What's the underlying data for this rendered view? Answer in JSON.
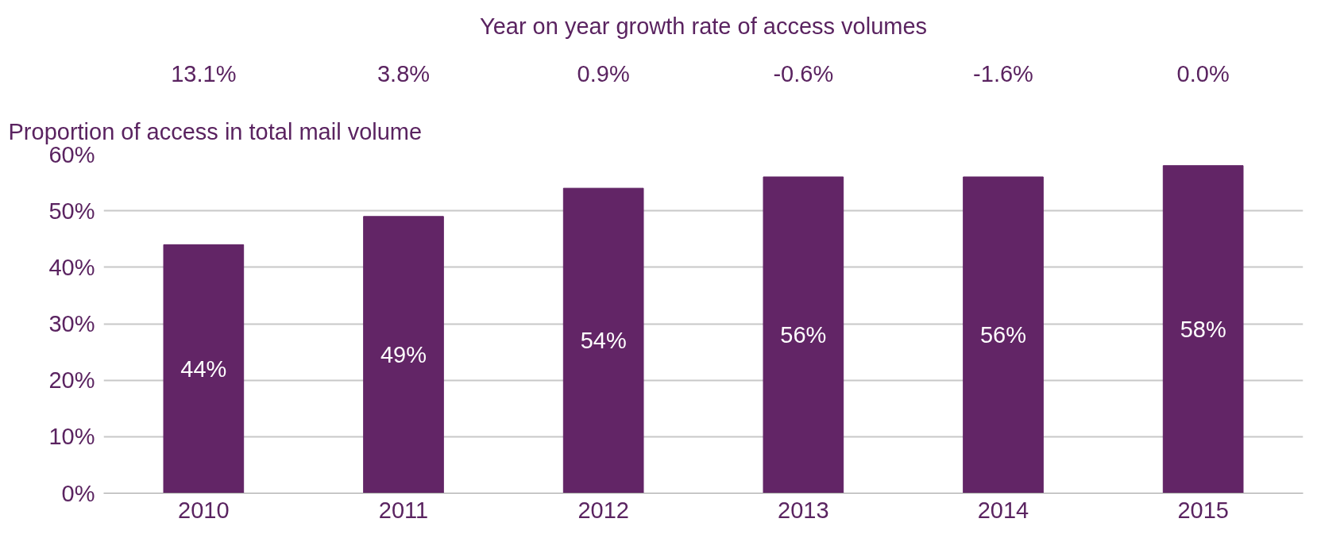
{
  "chart_data": {
    "type": "bar",
    "ylabel": "Proportion of access in total mail volume",
    "categories": [
      "2010",
      "2011",
      "2012",
      "2013",
      "2014",
      "2015"
    ],
    "values": [
      44,
      49,
      54,
      56,
      56,
      58
    ],
    "color": "#622566",
    "value_labels": [
      "44%",
      "49%",
      "54%",
      "56%",
      "56%",
      "58%"
    ],
    "ylim": [
      0,
      60
    ],
    "yticks": [
      {
        "value": 0,
        "label": "0%"
      },
      {
        "value": 10,
        "label": "10%"
      },
      {
        "value": 20,
        "label": "20%"
      },
      {
        "value": 30,
        "label": "30%"
      },
      {
        "value": 40,
        "label": "40%"
      },
      {
        "value": 50,
        "label": "50%"
      },
      {
        "value": 60,
        "label": "60%"
      }
    ],
    "grid": "y",
    "annotations": [
      "Year on year growth rate of access volumes",
      "13.1%",
      "3.8%",
      "0.9%",
      "-0.6%",
      "-1.6%",
      "0.0%"
    ]
  }
}
